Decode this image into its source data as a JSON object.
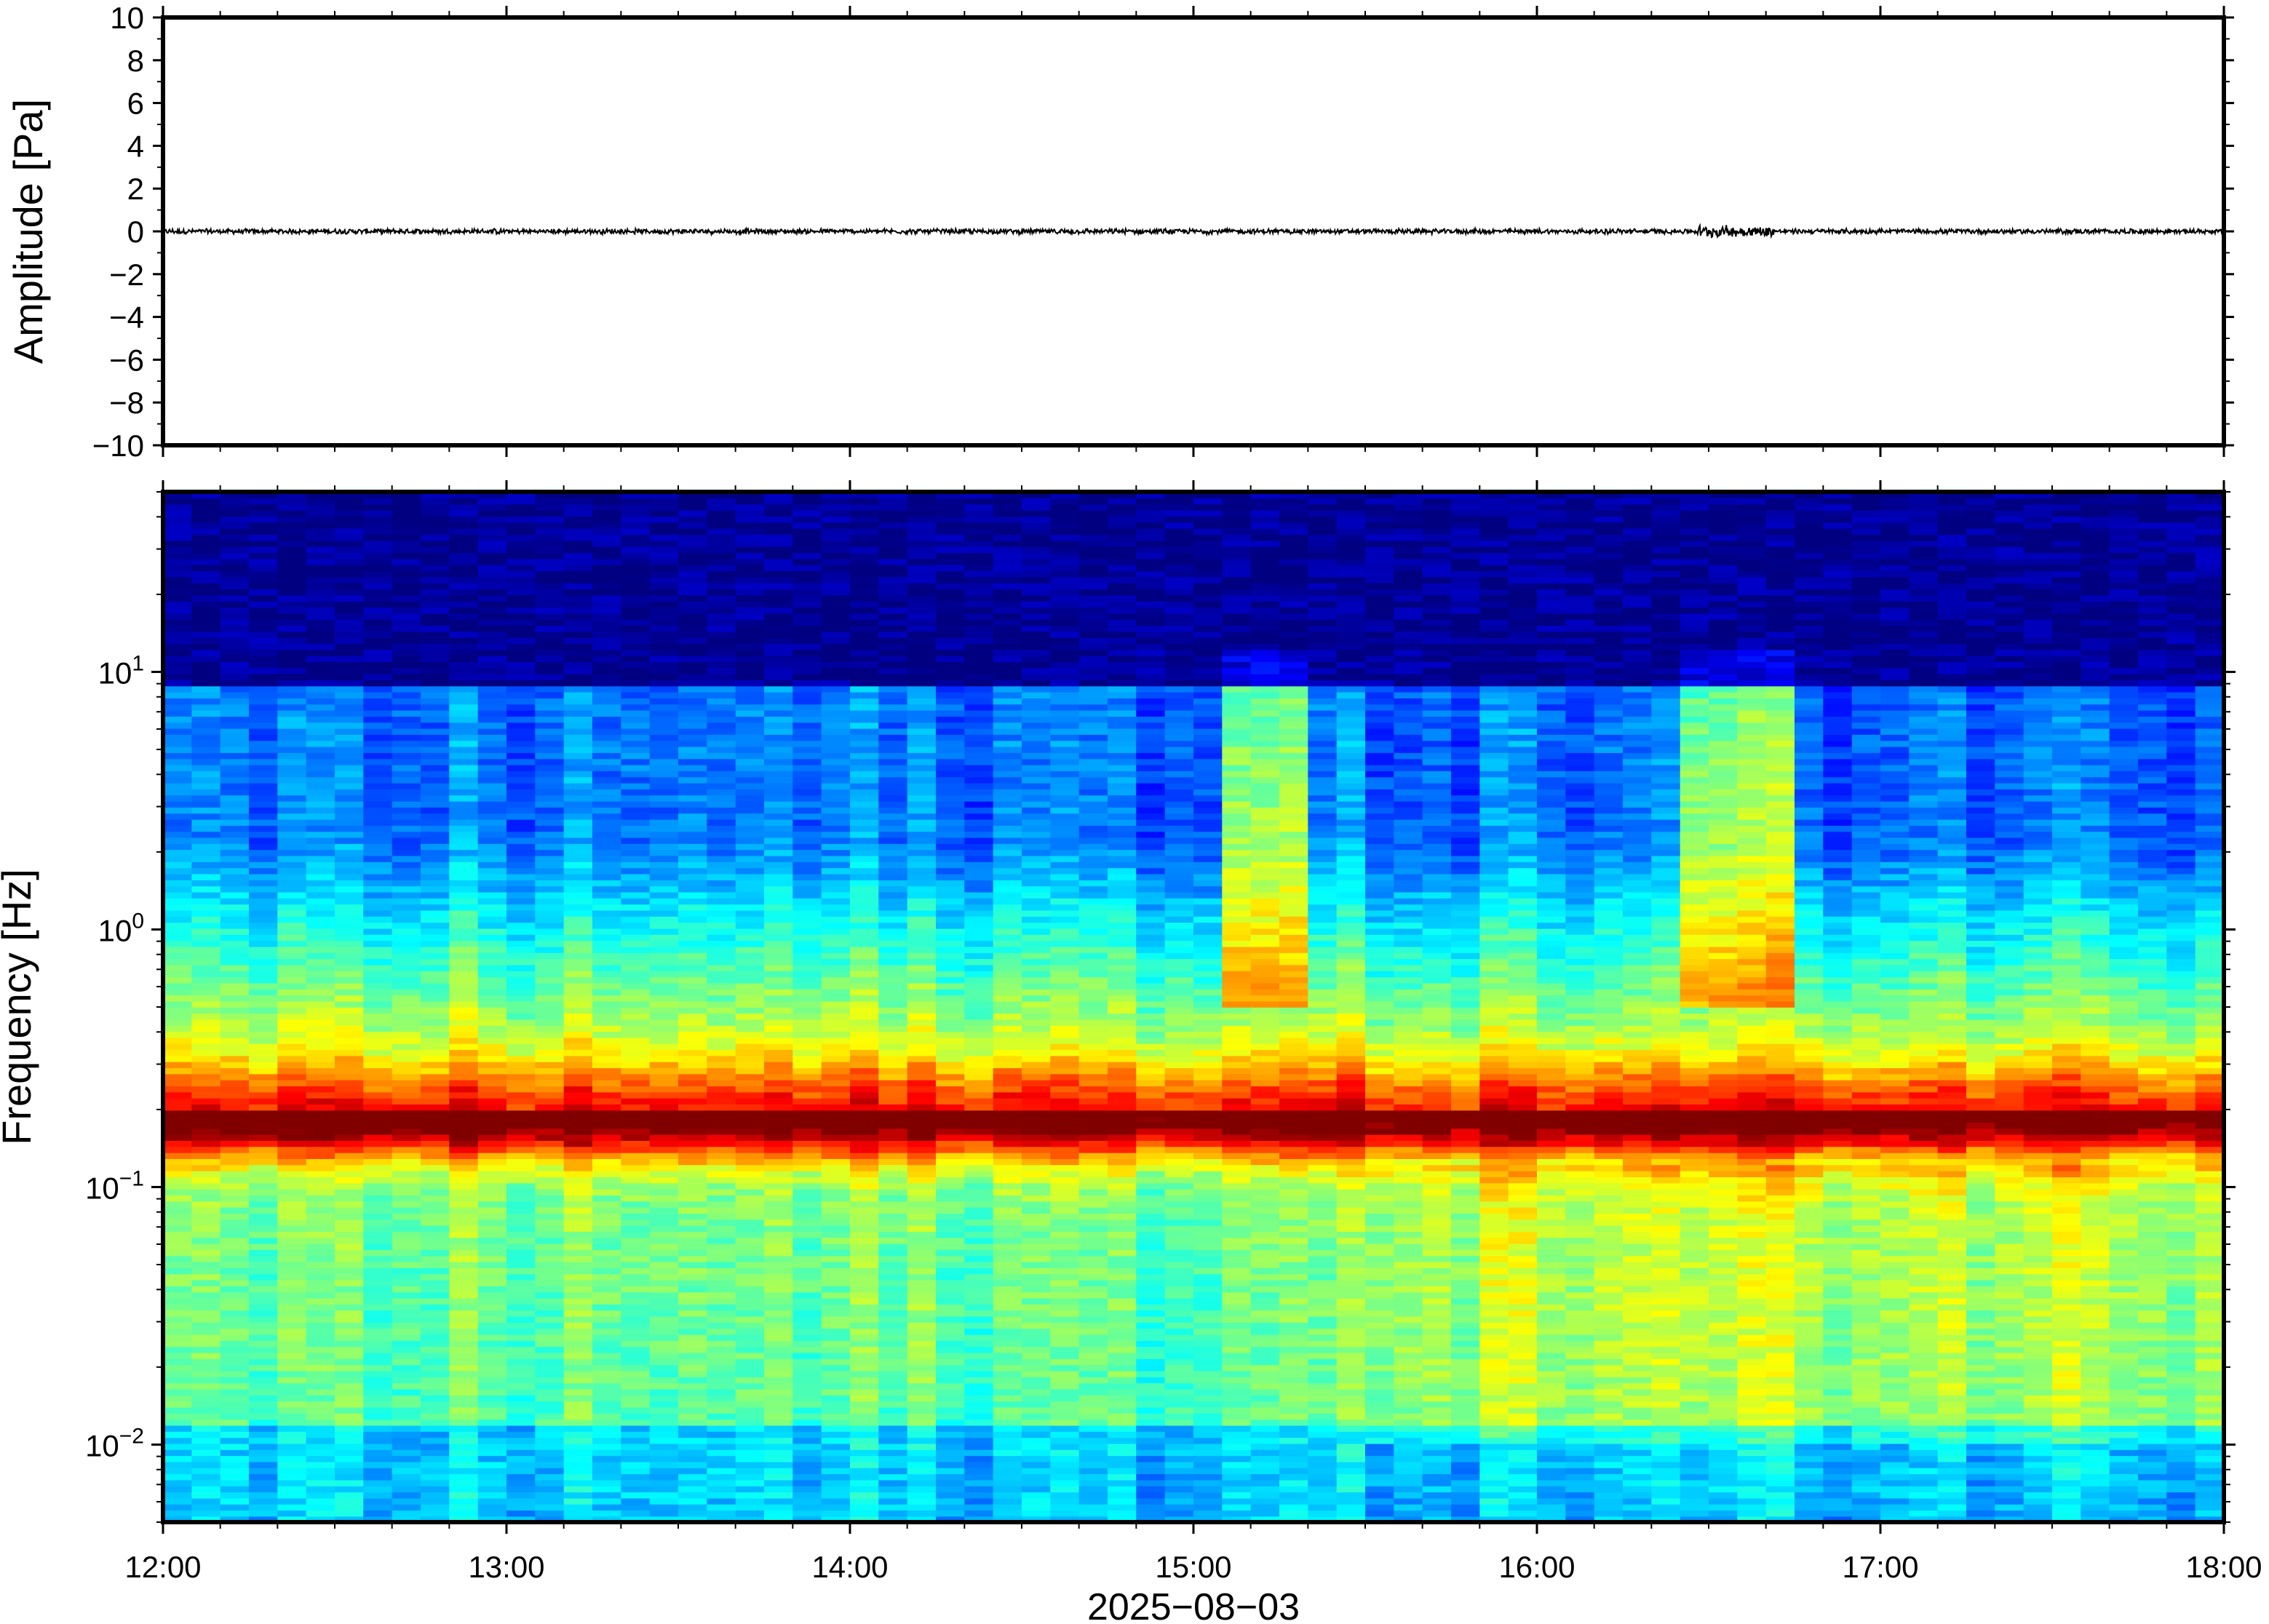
{
  "chart_data": [
    {
      "type": "line",
      "panel": "waveform",
      "ylabel": "Amplitude [Pa]",
      "xlabel": "",
      "xlim": [
        "12:00",
        "18:00"
      ],
      "ylim": [
        -10,
        10
      ],
      "y_ticks": [
        10,
        8,
        6,
        4,
        2,
        0,
        -2,
        -4,
        -6,
        -8,
        -10
      ],
      "y_tick_labels": [
        "10",
        "8",
        "6",
        "4",
        "2",
        "0",
        "−2",
        "−4",
        "−6",
        "−8",
        "−10"
      ],
      "series": [
        {
          "values_description_free": true,
          "amplitude_range": [
            -0.15,
            0.15
          ],
          "mean": 0
        }
      ],
      "grid": false,
      "legend": "none",
      "line_color": "#000000"
    },
    {
      "type": "heatmap",
      "panel": "spectrogram",
      "ylabel": "Frequency [Hz]",
      "xlabel": "2025−08−03",
      "x_tick_labels": [
        "12:00",
        "13:00",
        "14:00",
        "15:00",
        "16:00",
        "17:00",
        "18:00"
      ],
      "xlim": [
        "12:00",
        "18:00"
      ],
      "ylim": [
        0.005,
        50
      ],
      "y_scale": "log",
      "y_ticks": [
        10,
        1,
        0.1,
        0.01
      ],
      "y_tick_labels": [
        {
          "base": "10",
          "exp": "1"
        },
        {
          "base": "10",
          "exp": "0"
        },
        {
          "base": "10",
          "exp": "−1"
        },
        {
          "base": "10",
          "exp": "−2"
        }
      ],
      "colormap": "jet",
      "bright_bursts": [
        {
          "start": "15:08",
          "end": "15:18",
          "max_freq_hz": 15
        },
        {
          "start": "16:28",
          "end": "16:42",
          "max_freq_hz": 15
        }
      ],
      "microseism_band_hz": [
        0.15,
        0.3
      ],
      "grid": false,
      "legend": "none"
    }
  ]
}
